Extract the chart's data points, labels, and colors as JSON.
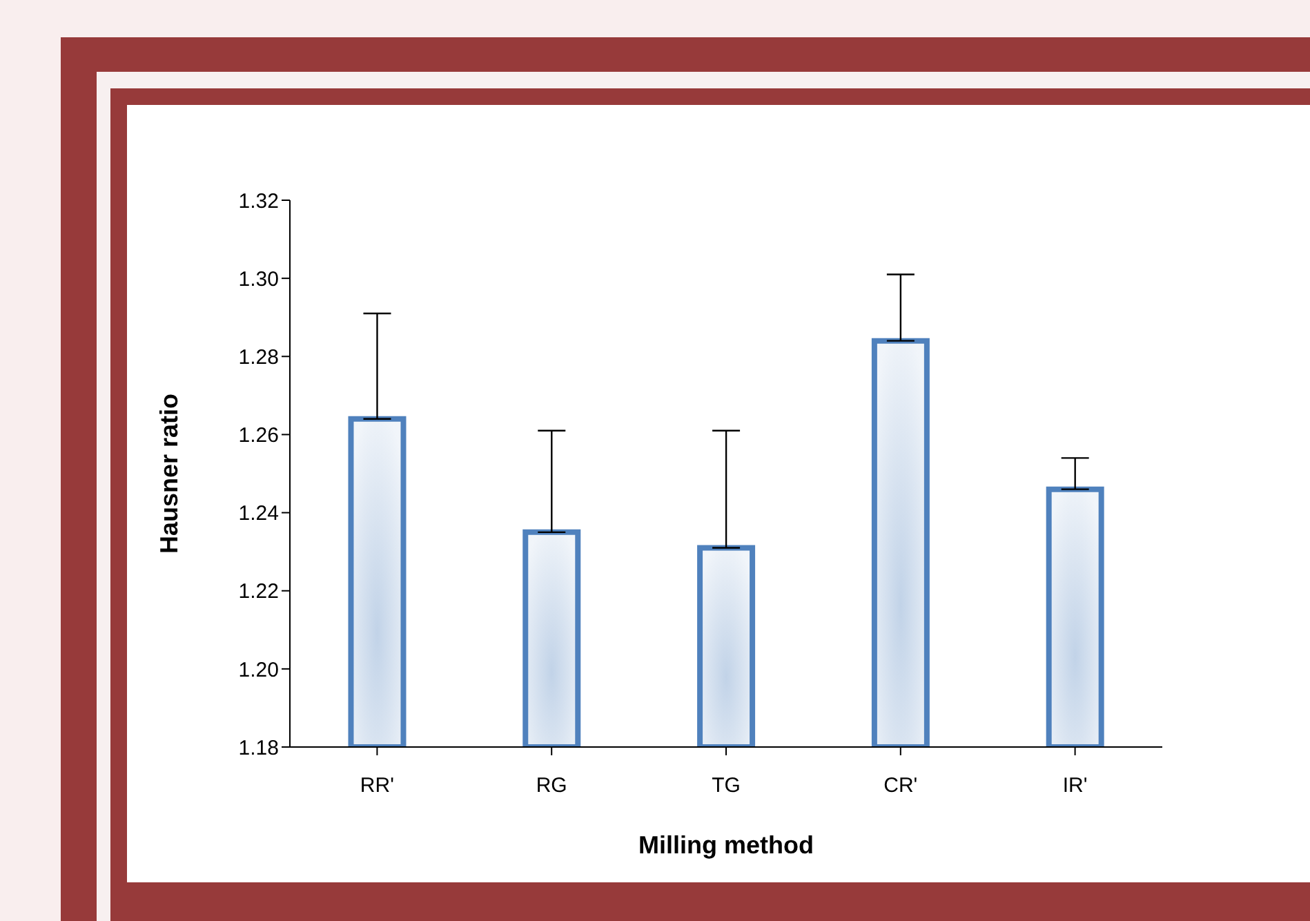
{
  "chart_data": {
    "type": "bar",
    "xlabel": "Milling method",
    "ylabel": "Hausner ratio",
    "categories": [
      "RR'",
      "RG",
      "TG",
      "CR'",
      "IR'"
    ],
    "values": [
      1.264,
      1.235,
      1.231,
      1.284,
      1.246
    ],
    "errors": [
      [
        1.264,
        1.291
      ],
      [
        1.235,
        1.261
      ],
      [
        1.231,
        1.261
      ],
      [
        1.284,
        1.301
      ],
      [
        1.246,
        1.254
      ]
    ],
    "color": "#4f81bd",
    "ylim": [
      1.18,
      1.32
    ],
    "yticks": [
      {
        "value": 1.18,
        "label": "1.18"
      },
      {
        "value": 1.2,
        "label": "1.20"
      },
      {
        "value": 1.22,
        "label": "1.22"
      },
      {
        "value": 1.24,
        "label": "1.24"
      },
      {
        "value": 1.26,
        "label": "1.26"
      },
      {
        "value": 1.28,
        "label": "1.28"
      },
      {
        "value": 1.3,
        "label": "1.30"
      },
      {
        "value": 1.32,
        "label": "1.32"
      }
    ],
    "grid": false,
    "legend": false
  }
}
